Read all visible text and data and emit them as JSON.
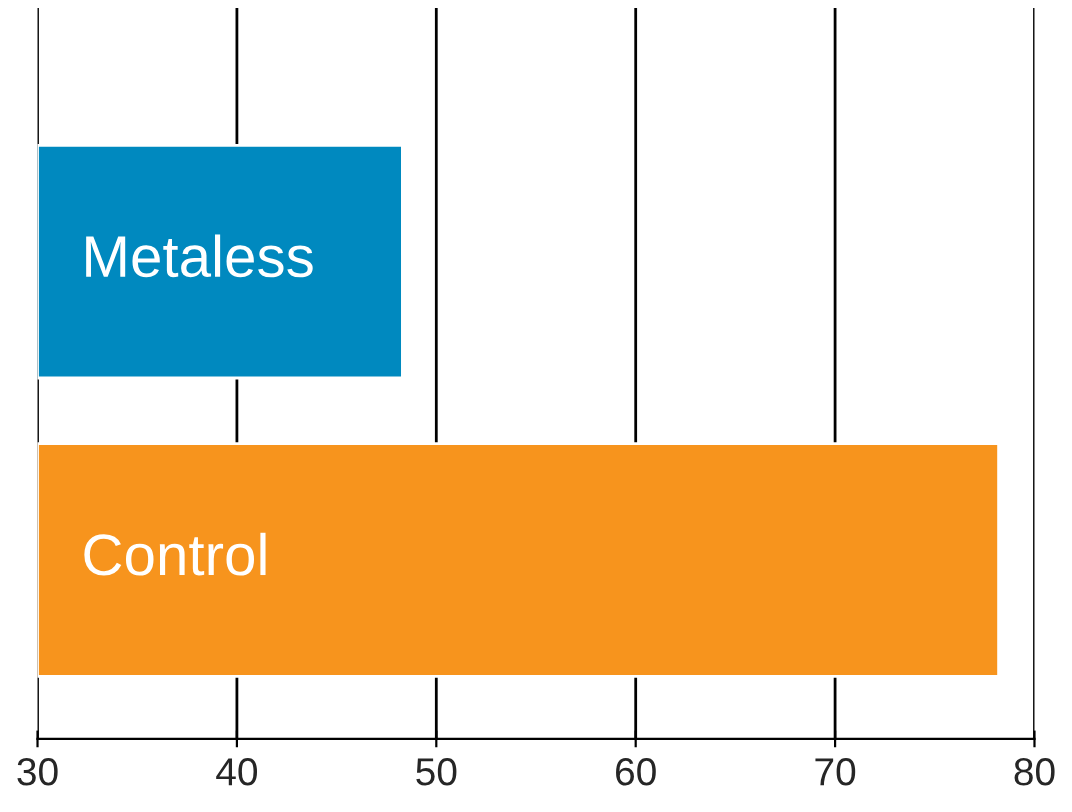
{
  "chart_data": {
    "type": "bar",
    "orientation": "horizontal",
    "categories": [
      "Metaless",
      "Control"
    ],
    "colors": [
      "#0089bf",
      "#f7941d"
    ],
    "values": [
      48.3,
      78.2
    ],
    "xlim": [
      30,
      80
    ],
    "xticks": [
      30,
      40,
      50,
      60,
      70,
      80
    ],
    "grid": "x"
  }
}
